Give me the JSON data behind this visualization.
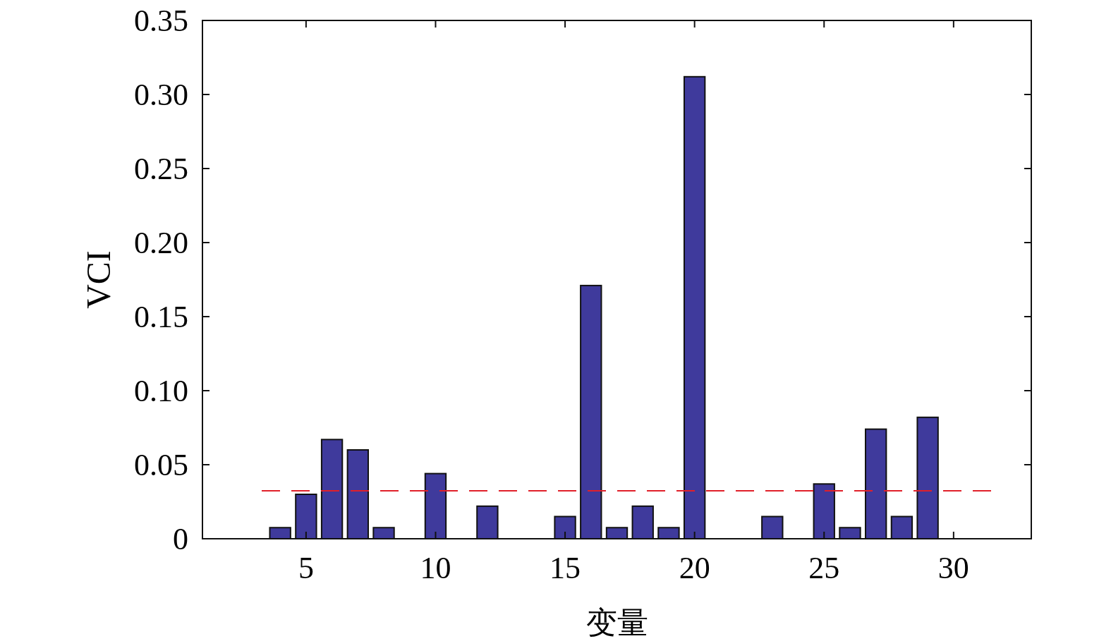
{
  "chart_data": {
    "type": "bar",
    "xlabel": "变量",
    "ylabel": "VCI",
    "x": [
      4,
      5,
      6,
      7,
      8,
      10,
      12,
      15,
      16,
      17,
      18,
      19,
      20,
      23,
      25,
      26,
      27,
      28,
      29
    ],
    "values": [
      0.0075,
      0.03,
      0.067,
      0.06,
      0.0075,
      0.044,
      0.022,
      0.015,
      0.171,
      0.0075,
      0.022,
      0.0075,
      0.312,
      0.015,
      0.037,
      0.0075,
      0.074,
      0.015,
      0.082
    ],
    "color": "#3f3a9c",
    "xlim": [
      1,
      33
    ],
    "xticks": [
      5,
      10,
      15,
      20,
      25,
      30
    ],
    "ylim": [
      0,
      0.35
    ],
    "yticks": [
      {
        "value": 0,
        "label": "0"
      },
      {
        "value": 0.05,
        "label": "0.05"
      },
      {
        "value": 0.1,
        "label": "0.10"
      },
      {
        "value": 0.15,
        "label": "0.15"
      },
      {
        "value": 0.2,
        "label": "0.20"
      },
      {
        "value": 0.25,
        "label": "0.25"
      },
      {
        "value": 0.3,
        "label": "0.30"
      },
      {
        "value": 0.35,
        "label": "0.35"
      }
    ],
    "ref_lines": [
      {
        "axis": "y",
        "value": 0.0324,
        "color": "#e0202a",
        "line_style": "dashed"
      }
    ],
    "grid": false
  }
}
